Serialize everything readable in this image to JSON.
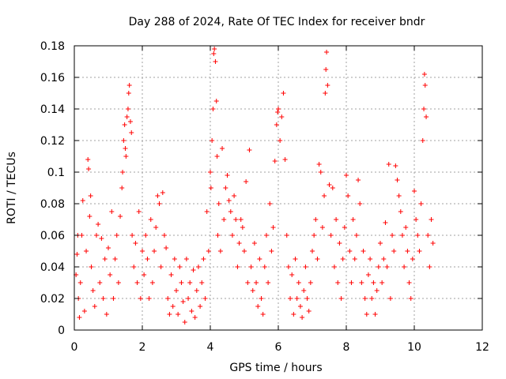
{
  "chart_data": {
    "type": "scatter",
    "title": "Day 288 of 2024, Rate Of TEC Index for receiver bndr",
    "xlabel": "GPS time / hours",
    "ylabel": "ROTI / TECUs",
    "xlim": [
      0,
      12
    ],
    "ylim": [
      0,
      0.18
    ],
    "x_ticks": [
      "0",
      "2",
      "4",
      "6",
      "8",
      "10",
      "12"
    ],
    "y_ticks": [
      "0",
      "0.02",
      "0.04",
      "0.06",
      "0.08",
      "0.1",
      "0.12",
      "0.14",
      "0.16",
      "0.18"
    ],
    "grid": true,
    "marker": "+",
    "marker_color": "#ff0000",
    "series": [
      {
        "name": "ROTI",
        "points": [
          [
            0.05,
            0.035
          ],
          [
            0.08,
            0.048
          ],
          [
            0.1,
            0.06
          ],
          [
            0.12,
            0.02
          ],
          [
            0.15,
            0.008
          ],
          [
            0.18,
            0.03
          ],
          [
            0.22,
            0.06
          ],
          [
            0.25,
            0.082
          ],
          [
            0.3,
            0.012
          ],
          [
            0.35,
            0.05
          ],
          [
            0.4,
            0.108
          ],
          [
            0.42,
            0.102
          ],
          [
            0.45,
            0.072
          ],
          [
            0.48,
            0.085
          ],
          [
            0.5,
            0.04
          ],
          [
            0.55,
            0.025
          ],
          [
            0.6,
            0.015
          ],
          [
            0.65,
            0.06
          ],
          [
            0.7,
            0.067
          ],
          [
            0.75,
            0.03
          ],
          [
            0.8,
            0.058
          ],
          [
            0.85,
            0.02
          ],
          [
            0.9,
            0.045
          ],
          [
            0.95,
            0.01
          ],
          [
            1.0,
            0.052
          ],
          [
            1.05,
            0.035
          ],
          [
            1.1,
            0.075
          ],
          [
            1.15,
            0.02
          ],
          [
            1.2,
            0.045
          ],
          [
            1.25,
            0.06
          ],
          [
            1.3,
            0.03
          ],
          [
            1.35,
            0.072
          ],
          [
            1.4,
            0.09
          ],
          [
            1.42,
            0.1
          ],
          [
            1.45,
            0.12
          ],
          [
            1.48,
            0.13
          ],
          [
            1.5,
            0.115
          ],
          [
            1.52,
            0.11
          ],
          [
            1.55,
            0.135
          ],
          [
            1.58,
            0.14
          ],
          [
            1.6,
            0.15
          ],
          [
            1.62,
            0.155
          ],
          [
            1.65,
            0.132
          ],
          [
            1.68,
            0.125
          ],
          [
            1.7,
            0.06
          ],
          [
            1.75,
            0.04
          ],
          [
            1.8,
            0.055
          ],
          [
            1.85,
            0.03
          ],
          [
            1.9,
            0.075
          ],
          [
            1.95,
            0.02
          ],
          [
            2.0,
            0.05
          ],
          [
            2.05,
            0.035
          ],
          [
            2.1,
            0.06
          ],
          [
            2.15,
            0.045
          ],
          [
            2.2,
            0.02
          ],
          [
            2.25,
            0.07
          ],
          [
            2.3,
            0.03
          ],
          [
            2.35,
            0.05
          ],
          [
            2.4,
            0.065
          ],
          [
            2.45,
            0.085
          ],
          [
            2.5,
            0.08
          ],
          [
            2.55,
            0.04
          ],
          [
            2.6,
            0.087
          ],
          [
            2.65,
            0.06
          ],
          [
            2.7,
            0.052
          ],
          [
            2.75,
            0.02
          ],
          [
            2.8,
            0.01
          ],
          [
            2.85,
            0.035
          ],
          [
            2.9,
            0.015
          ],
          [
            2.95,
            0.045
          ],
          [
            3.0,
            0.025
          ],
          [
            3.05,
            0.01
          ],
          [
            3.1,
            0.04
          ],
          [
            3.15,
            0.03
          ],
          [
            3.2,
            0.018
          ],
          [
            3.25,
            0.005
          ],
          [
            3.3,
            0.045
          ],
          [
            3.35,
            0.02
          ],
          [
            3.4,
            0.03
          ],
          [
            3.45,
            0.012
          ],
          [
            3.5,
            0.038
          ],
          [
            3.55,
            0.008
          ],
          [
            3.6,
            0.025
          ],
          [
            3.65,
            0.04
          ],
          [
            3.7,
            0.015
          ],
          [
            3.75,
            0.03
          ],
          [
            3.8,
            0.045
          ],
          [
            3.85,
            0.02
          ],
          [
            3.9,
            0.075
          ],
          [
            3.95,
            0.05
          ],
          [
            4.0,
            0.1
          ],
          [
            4.02,
            0.09
          ],
          [
            4.05,
            0.12
          ],
          [
            4.08,
            0.14
          ],
          [
            4.1,
            0.175
          ],
          [
            4.12,
            0.178
          ],
          [
            4.15,
            0.17
          ],
          [
            4.18,
            0.145
          ],
          [
            4.2,
            0.11
          ],
          [
            4.22,
            0.06
          ],
          [
            4.25,
            0.08
          ],
          [
            4.3,
            0.05
          ],
          [
            4.35,
            0.115
          ],
          [
            4.4,
            0.07
          ],
          [
            4.45,
            0.09
          ],
          [
            4.5,
            0.098
          ],
          [
            4.55,
            0.082
          ],
          [
            4.6,
            0.075
          ],
          [
            4.65,
            0.06
          ],
          [
            4.7,
            0.085
          ],
          [
            4.75,
            0.07
          ],
          [
            4.8,
            0.04
          ],
          [
            4.85,
            0.055
          ],
          [
            4.9,
            0.07
          ],
          [
            4.95,
            0.065
          ],
          [
            5.0,
            0.05
          ],
          [
            5.05,
            0.094
          ],
          [
            5.1,
            0.03
          ],
          [
            5.15,
            0.114
          ],
          [
            5.2,
            0.04
          ],
          [
            5.25,
            0.025
          ],
          [
            5.3,
            0.055
          ],
          [
            5.35,
            0.03
          ],
          [
            5.4,
            0.015
          ],
          [
            5.45,
            0.045
          ],
          [
            5.5,
            0.02
          ],
          [
            5.55,
            0.01
          ],
          [
            5.6,
            0.04
          ],
          [
            5.65,
            0.06
          ],
          [
            5.7,
            0.03
          ],
          [
            5.75,
            0.08
          ],
          [
            5.8,
            0.05
          ],
          [
            5.85,
            0.065
          ],
          [
            5.9,
            0.107
          ],
          [
            5.95,
            0.13
          ],
          [
            5.98,
            0.138
          ],
          [
            6.0,
            0.14
          ],
          [
            6.05,
            0.12
          ],
          [
            6.1,
            0.135
          ],
          [
            6.15,
            0.15
          ],
          [
            6.2,
            0.108
          ],
          [
            6.25,
            0.06
          ],
          [
            6.3,
            0.04
          ],
          [
            6.35,
            0.02
          ],
          [
            6.4,
            0.035
          ],
          [
            6.45,
            0.01
          ],
          [
            6.5,
            0.045
          ],
          [
            6.55,
            0.02
          ],
          [
            6.6,
            0.03
          ],
          [
            6.65,
            0.015
          ],
          [
            6.7,
            0.008
          ],
          [
            6.75,
            0.025
          ],
          [
            6.8,
            0.04
          ],
          [
            6.85,
            0.02
          ],
          [
            6.9,
            0.012
          ],
          [
            6.95,
            0.03
          ],
          [
            7.0,
            0.05
          ],
          [
            7.05,
            0.06
          ],
          [
            7.1,
            0.07
          ],
          [
            7.15,
            0.045
          ],
          [
            7.2,
            0.105
          ],
          [
            7.25,
            0.1
          ],
          [
            7.3,
            0.065
          ],
          [
            7.35,
            0.085
          ],
          [
            7.38,
            0.15
          ],
          [
            7.4,
            0.165
          ],
          [
            7.42,
            0.176
          ],
          [
            7.45,
            0.155
          ],
          [
            7.5,
            0.092
          ],
          [
            7.55,
            0.06
          ],
          [
            7.6,
            0.09
          ],
          [
            7.65,
            0.04
          ],
          [
            7.7,
            0.07
          ],
          [
            7.75,
            0.03
          ],
          [
            7.8,
            0.055
          ],
          [
            7.85,
            0.02
          ],
          [
            7.9,
            0.045
          ],
          [
            7.95,
            0.065
          ],
          [
            8.0,
            0.098
          ],
          [
            8.05,
            0.085
          ],
          [
            8.1,
            0.05
          ],
          [
            8.15,
            0.03
          ],
          [
            8.2,
            0.07
          ],
          [
            8.25,
            0.045
          ],
          [
            8.3,
            0.06
          ],
          [
            8.35,
            0.095
          ],
          [
            8.4,
            0.08
          ],
          [
            8.45,
            0.03
          ],
          [
            8.5,
            0.05
          ],
          [
            8.55,
            0.02
          ],
          [
            8.6,
            0.01
          ],
          [
            8.65,
            0.035
          ],
          [
            8.7,
            0.045
          ],
          [
            8.75,
            0.02
          ],
          [
            8.8,
            0.03
          ],
          [
            8.85,
            0.01
          ],
          [
            8.9,
            0.025
          ],
          [
            8.95,
            0.04
          ],
          [
            9.0,
            0.055
          ],
          [
            9.05,
            0.03
          ],
          [
            9.1,
            0.045
          ],
          [
            9.15,
            0.068
          ],
          [
            9.2,
            0.04
          ],
          [
            9.25,
            0.105
          ],
          [
            9.3,
            0.02
          ],
          [
            9.35,
            0.06
          ],
          [
            9.4,
            0.05
          ],
          [
            9.45,
            0.104
          ],
          [
            9.5,
            0.095
          ],
          [
            9.55,
            0.085
          ],
          [
            9.6,
            0.075
          ],
          [
            9.65,
            0.06
          ],
          [
            9.7,
            0.04
          ],
          [
            9.75,
            0.065
          ],
          [
            9.8,
            0.05
          ],
          [
            9.85,
            0.03
          ],
          [
            9.9,
            0.02
          ],
          [
            9.95,
            0.045
          ],
          [
            10.0,
            0.088
          ],
          [
            10.05,
            0.07
          ],
          [
            10.1,
            0.06
          ],
          [
            10.15,
            0.05
          ],
          [
            10.2,
            0.08
          ],
          [
            10.25,
            0.12
          ],
          [
            10.28,
            0.14
          ],
          [
            10.3,
            0.162
          ],
          [
            10.32,
            0.155
          ],
          [
            10.35,
            0.135
          ],
          [
            10.4,
            0.06
          ],
          [
            10.45,
            0.04
          ],
          [
            10.5,
            0.07
          ],
          [
            10.55,
            0.055
          ]
        ]
      }
    ]
  }
}
